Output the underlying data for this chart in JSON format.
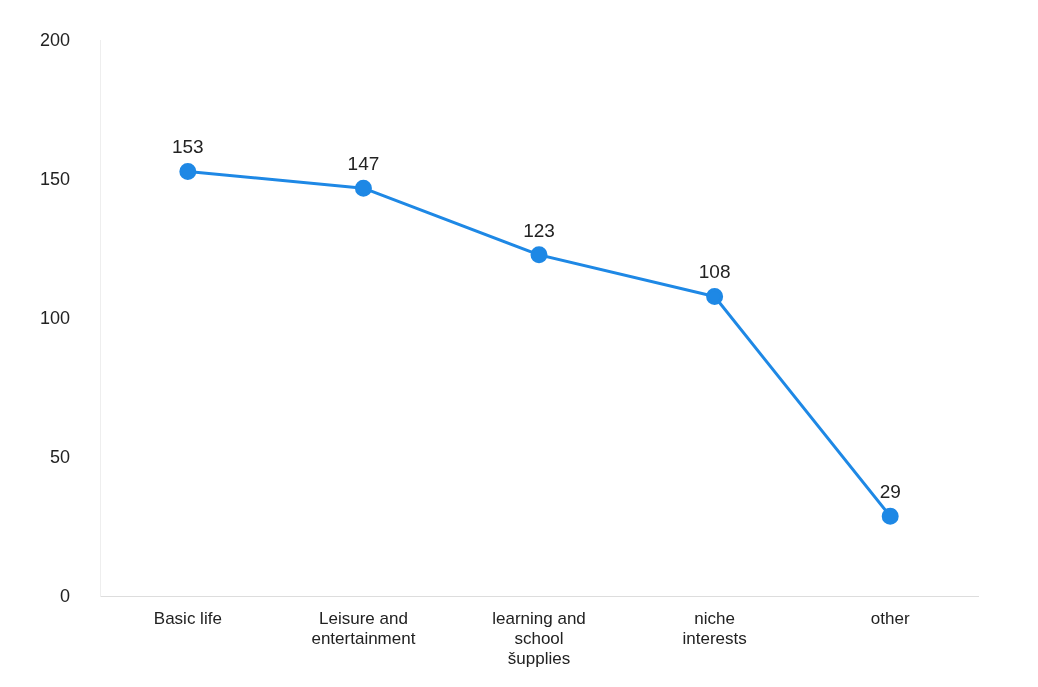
{
  "chart_data": {
    "type": "line",
    "categories": [
      "Basic life",
      "Leisure and entertainment",
      "learning and school šupplies",
      "niche interests",
      "other"
    ],
    "values": [
      153,
      147,
      123,
      108,
      29
    ],
    "color": "#1e88e5",
    "ylim": [
      0,
      200
    ],
    "yticks": [
      0,
      50,
      100,
      150,
      200
    ],
    "grid": false,
    "legend": false,
    "marker": "circle",
    "line_style": "solid",
    "data_labels": true
  }
}
